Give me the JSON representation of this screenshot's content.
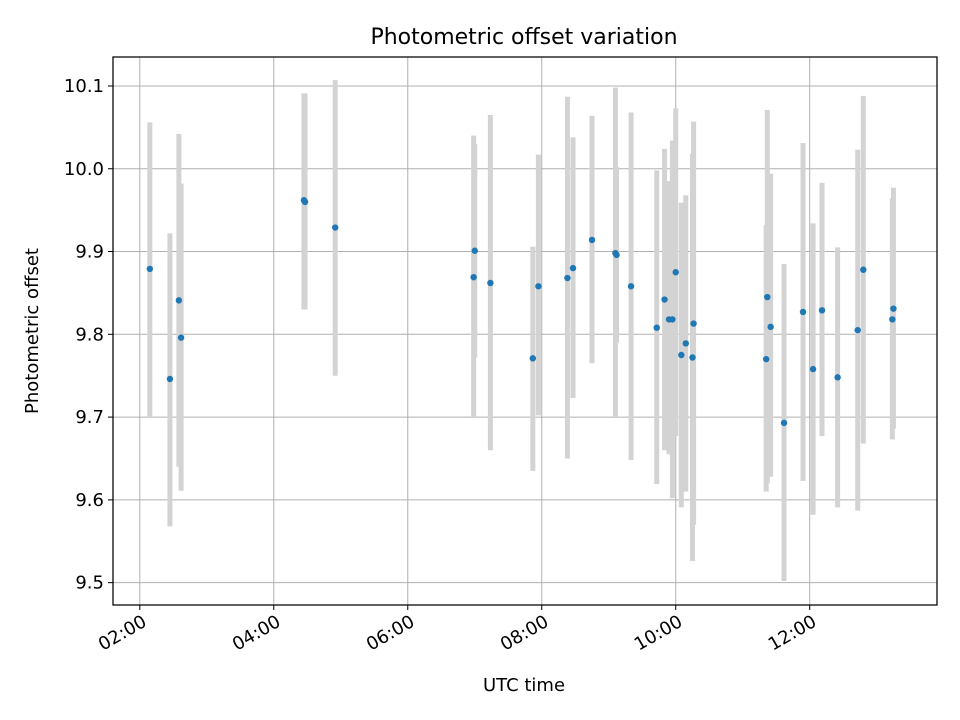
{
  "chart_data": {
    "type": "scatter",
    "title": "Photometric offset variation",
    "xlabel": "UTC time",
    "ylabel": "Photometric offset",
    "x_axis_kind": "time",
    "xlim": [
      "01:36",
      "13:54"
    ],
    "ylim": [
      9.473,
      10.135
    ],
    "grid": true,
    "x_ticks": [
      "02:00",
      "04:00",
      "06:00",
      "08:00",
      "10:00",
      "12:00"
    ],
    "y_ticks": [
      "9.5",
      "9.6",
      "9.7",
      "9.8",
      "9.9",
      "10.0",
      "10.1"
    ],
    "colors": {
      "marker": "#1f77b4",
      "errorbar": "#d3d3d3",
      "grid": "#b0b0b0"
    },
    "points": [
      {
        "x": "02:09",
        "y": 9.879,
        "ylo": 9.7,
        "yhi": 10.056
      },
      {
        "x": "02:27",
        "y": 9.746,
        "ylo": 9.568,
        "yhi": 9.922
      },
      {
        "x": "02:35",
        "y": 9.841,
        "ylo": 9.64,
        "yhi": 10.042
      },
      {
        "x": "02:37",
        "y": 9.796,
        "ylo": 9.611,
        "yhi": 9.982
      },
      {
        "x": "04:27",
        "y": 9.962,
        "ylo": 9.83,
        "yhi": 10.091
      },
      {
        "x": "04:28",
        "y": 9.96,
        "ylo": 9.83,
        "yhi": 10.091
      },
      {
        "x": "04:55",
        "y": 9.929,
        "ylo": 9.75,
        "yhi": 10.107
      },
      {
        "x": "06:59",
        "y": 9.869,
        "ylo": 9.7,
        "yhi": 10.04
      },
      {
        "x": "07:00",
        "y": 9.901,
        "ylo": 9.772,
        "yhi": 10.03
      },
      {
        "x": "07:14",
        "y": 9.862,
        "ylo": 9.66,
        "yhi": 10.065
      },
      {
        "x": "07:52",
        "y": 9.771,
        "ylo": 9.635,
        "yhi": 9.906
      },
      {
        "x": "07:57",
        "y": 9.858,
        "ylo": 9.702,
        "yhi": 10.017
      },
      {
        "x": "08:23",
        "y": 9.868,
        "ylo": 9.65,
        "yhi": 10.087
      },
      {
        "x": "08:28",
        "y": 9.88,
        "ylo": 9.723,
        "yhi": 10.038
      },
      {
        "x": "08:45",
        "y": 9.914,
        "ylo": 9.765,
        "yhi": 10.064
      },
      {
        "x": "09:06",
        "y": 9.898,
        "ylo": 9.7,
        "yhi": 10.098
      },
      {
        "x": "09:07",
        "y": 9.896,
        "ylo": 9.79,
        "yhi": 10.002
      },
      {
        "x": "09:20",
        "y": 9.858,
        "ylo": 9.648,
        "yhi": 10.068
      },
      {
        "x": "09:43",
        "y": 9.808,
        "ylo": 9.619,
        "yhi": 9.998
      },
      {
        "x": "09:50",
        "y": 9.842,
        "ylo": 9.66,
        "yhi": 10.024
      },
      {
        "x": "09:54",
        "y": 9.818,
        "ylo": 9.655,
        "yhi": 9.985
      },
      {
        "x": "09:57",
        "y": 9.818,
        "ylo": 9.602,
        "yhi": 10.034
      },
      {
        "x": "10:00",
        "y": 9.875,
        "ylo": 9.677,
        "yhi": 10.073
      },
      {
        "x": "10:05",
        "y": 9.775,
        "ylo": 9.591,
        "yhi": 9.959
      },
      {
        "x": "10:09",
        "y": 9.789,
        "ylo": 9.61,
        "yhi": 9.968
      },
      {
        "x": "10:15",
        "y": 9.772,
        "ylo": 9.526,
        "yhi": 10.018
      },
      {
        "x": "10:16",
        "y": 9.813,
        "ylo": 9.57,
        "yhi": 10.057
      },
      {
        "x": "11:21",
        "y": 9.77,
        "ylo": 9.61,
        "yhi": 9.932
      },
      {
        "x": "11:22",
        "y": 9.845,
        "ylo": 9.62,
        "yhi": 10.071
      },
      {
        "x": "11:25",
        "y": 9.809,
        "ylo": 9.628,
        "yhi": 9.994
      },
      {
        "x": "11:37",
        "y": 9.693,
        "ylo": 9.502,
        "yhi": 9.885
      },
      {
        "x": "11:54",
        "y": 9.827,
        "ylo": 9.623,
        "yhi": 10.031
      },
      {
        "x": "12:03",
        "y": 9.758,
        "ylo": 9.582,
        "yhi": 9.934
      },
      {
        "x": "12:11",
        "y": 9.829,
        "ylo": 9.677,
        "yhi": 9.983
      },
      {
        "x": "12:25",
        "y": 9.748,
        "ylo": 9.591,
        "yhi": 9.905
      },
      {
        "x": "12:43",
        "y": 9.805,
        "ylo": 9.587,
        "yhi": 10.023
      },
      {
        "x": "12:48",
        "y": 9.878,
        "ylo": 9.668,
        "yhi": 10.088
      },
      {
        "x": "13:14",
        "y": 9.818,
        "ylo": 9.673,
        "yhi": 9.964
      },
      {
        "x": "13:15",
        "y": 9.831,
        "ylo": 9.686,
        "yhi": 9.977
      }
    ]
  }
}
